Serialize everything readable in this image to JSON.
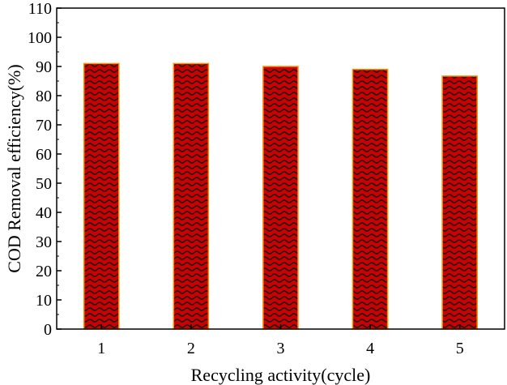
{
  "chart_data": {
    "type": "bar",
    "title": "",
    "xlabel": "Recycling activity(cycle)",
    "ylabel": "COD  Removal efficiency(%)",
    "categories": [
      "1",
      "2",
      "3",
      "4",
      "5"
    ],
    "values": [
      91,
      91,
      90,
      89,
      86.7
    ],
    "ylim": [
      0,
      110
    ],
    "yticks": [
      0,
      10,
      20,
      30,
      40,
      50,
      60,
      70,
      80,
      90,
      100,
      110
    ],
    "grid": false,
    "legend": "none",
    "colors": {
      "bar_fill": "#cc0000",
      "bar_pattern": "#1a1a1a",
      "bar_edge": "#ff8c00",
      "axis": "#000000"
    },
    "bar_pattern": "wavy-lines"
  }
}
